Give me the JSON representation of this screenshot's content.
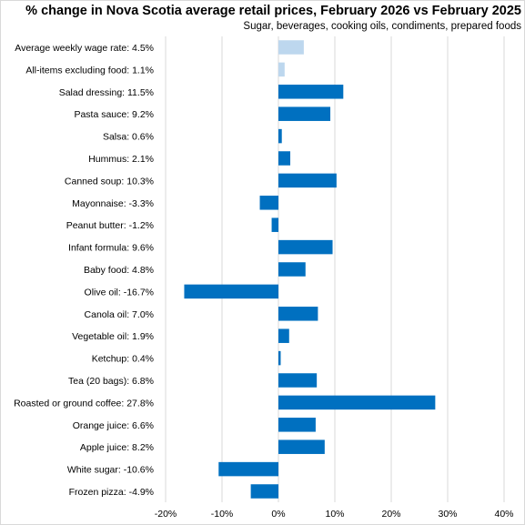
{
  "chart_data": {
    "type": "bar",
    "orientation": "horizontal",
    "title": "% change in Nova Scotia average retail prices, February 2026 vs February 2025",
    "subtitle": "Sugar, beverages,  cooking oils, condiments, prepared foods",
    "xlabel": "",
    "ylabel": "",
    "xlim": [
      -20,
      40
    ],
    "ticks": [
      -20,
      -10,
      0,
      10,
      20,
      30,
      40
    ],
    "tick_labels": [
      "-20%",
      "-10%",
      "0%",
      "10%",
      "20%",
      "30%",
      "40%"
    ],
    "grid": true,
    "legend": "none",
    "colors": {
      "primary": "#0070C0",
      "reference": "#BDD7EE",
      "grid": "#d9d9d9"
    },
    "bars": [
      {
        "label": "Average weekly wage rate: 4.5%",
        "value": 4.5,
        "color": "#BDD7EE"
      },
      {
        "label": "All-items excluding food: 1.1%",
        "value": 1.1,
        "color": "#BDD7EE"
      },
      {
        "label": "Salad dressing: 11.5%",
        "value": 11.5,
        "color": "#0070C0"
      },
      {
        "label": "Pasta sauce: 9.2%",
        "value": 9.2,
        "color": "#0070C0"
      },
      {
        "label": "Salsa: 0.6%",
        "value": 0.6,
        "color": "#0070C0"
      },
      {
        "label": "Hummus: 2.1%",
        "value": 2.1,
        "color": "#0070C0"
      },
      {
        "label": "Canned soup: 10.3%",
        "value": 10.3,
        "color": "#0070C0"
      },
      {
        "label": "Mayonnaise: -3.3%",
        "value": -3.3,
        "color": "#0070C0"
      },
      {
        "label": "Peanut butter: -1.2%",
        "value": -1.2,
        "color": "#0070C0"
      },
      {
        "label": "Infant formula: 9.6%",
        "value": 9.6,
        "color": "#0070C0"
      },
      {
        "label": "Baby food: 4.8%",
        "value": 4.8,
        "color": "#0070C0"
      },
      {
        "label": "Olive oil: -16.7%",
        "value": -16.7,
        "color": "#0070C0"
      },
      {
        "label": "Canola oil: 7.0%",
        "value": 7.0,
        "color": "#0070C0"
      },
      {
        "label": "Vegetable oil: 1.9%",
        "value": 1.9,
        "color": "#0070C0"
      },
      {
        "label": "Ketchup: 0.4%",
        "value": 0.4,
        "color": "#0070C0"
      },
      {
        "label": "Tea (20 bags): 6.8%",
        "value": 6.8,
        "color": "#0070C0"
      },
      {
        "label": "Roasted or ground coffee: 27.8%",
        "value": 27.8,
        "color": "#0070C0"
      },
      {
        "label": "Orange juice: 6.6%",
        "value": 6.6,
        "color": "#0070C0"
      },
      {
        "label": "Apple juice: 8.2%",
        "value": 8.2,
        "color": "#0070C0"
      },
      {
        "label": "White sugar: -10.6%",
        "value": -10.6,
        "color": "#0070C0"
      },
      {
        "label": "Frozen pizza: -4.9%",
        "value": -4.9,
        "color": "#0070C0"
      }
    ]
  }
}
